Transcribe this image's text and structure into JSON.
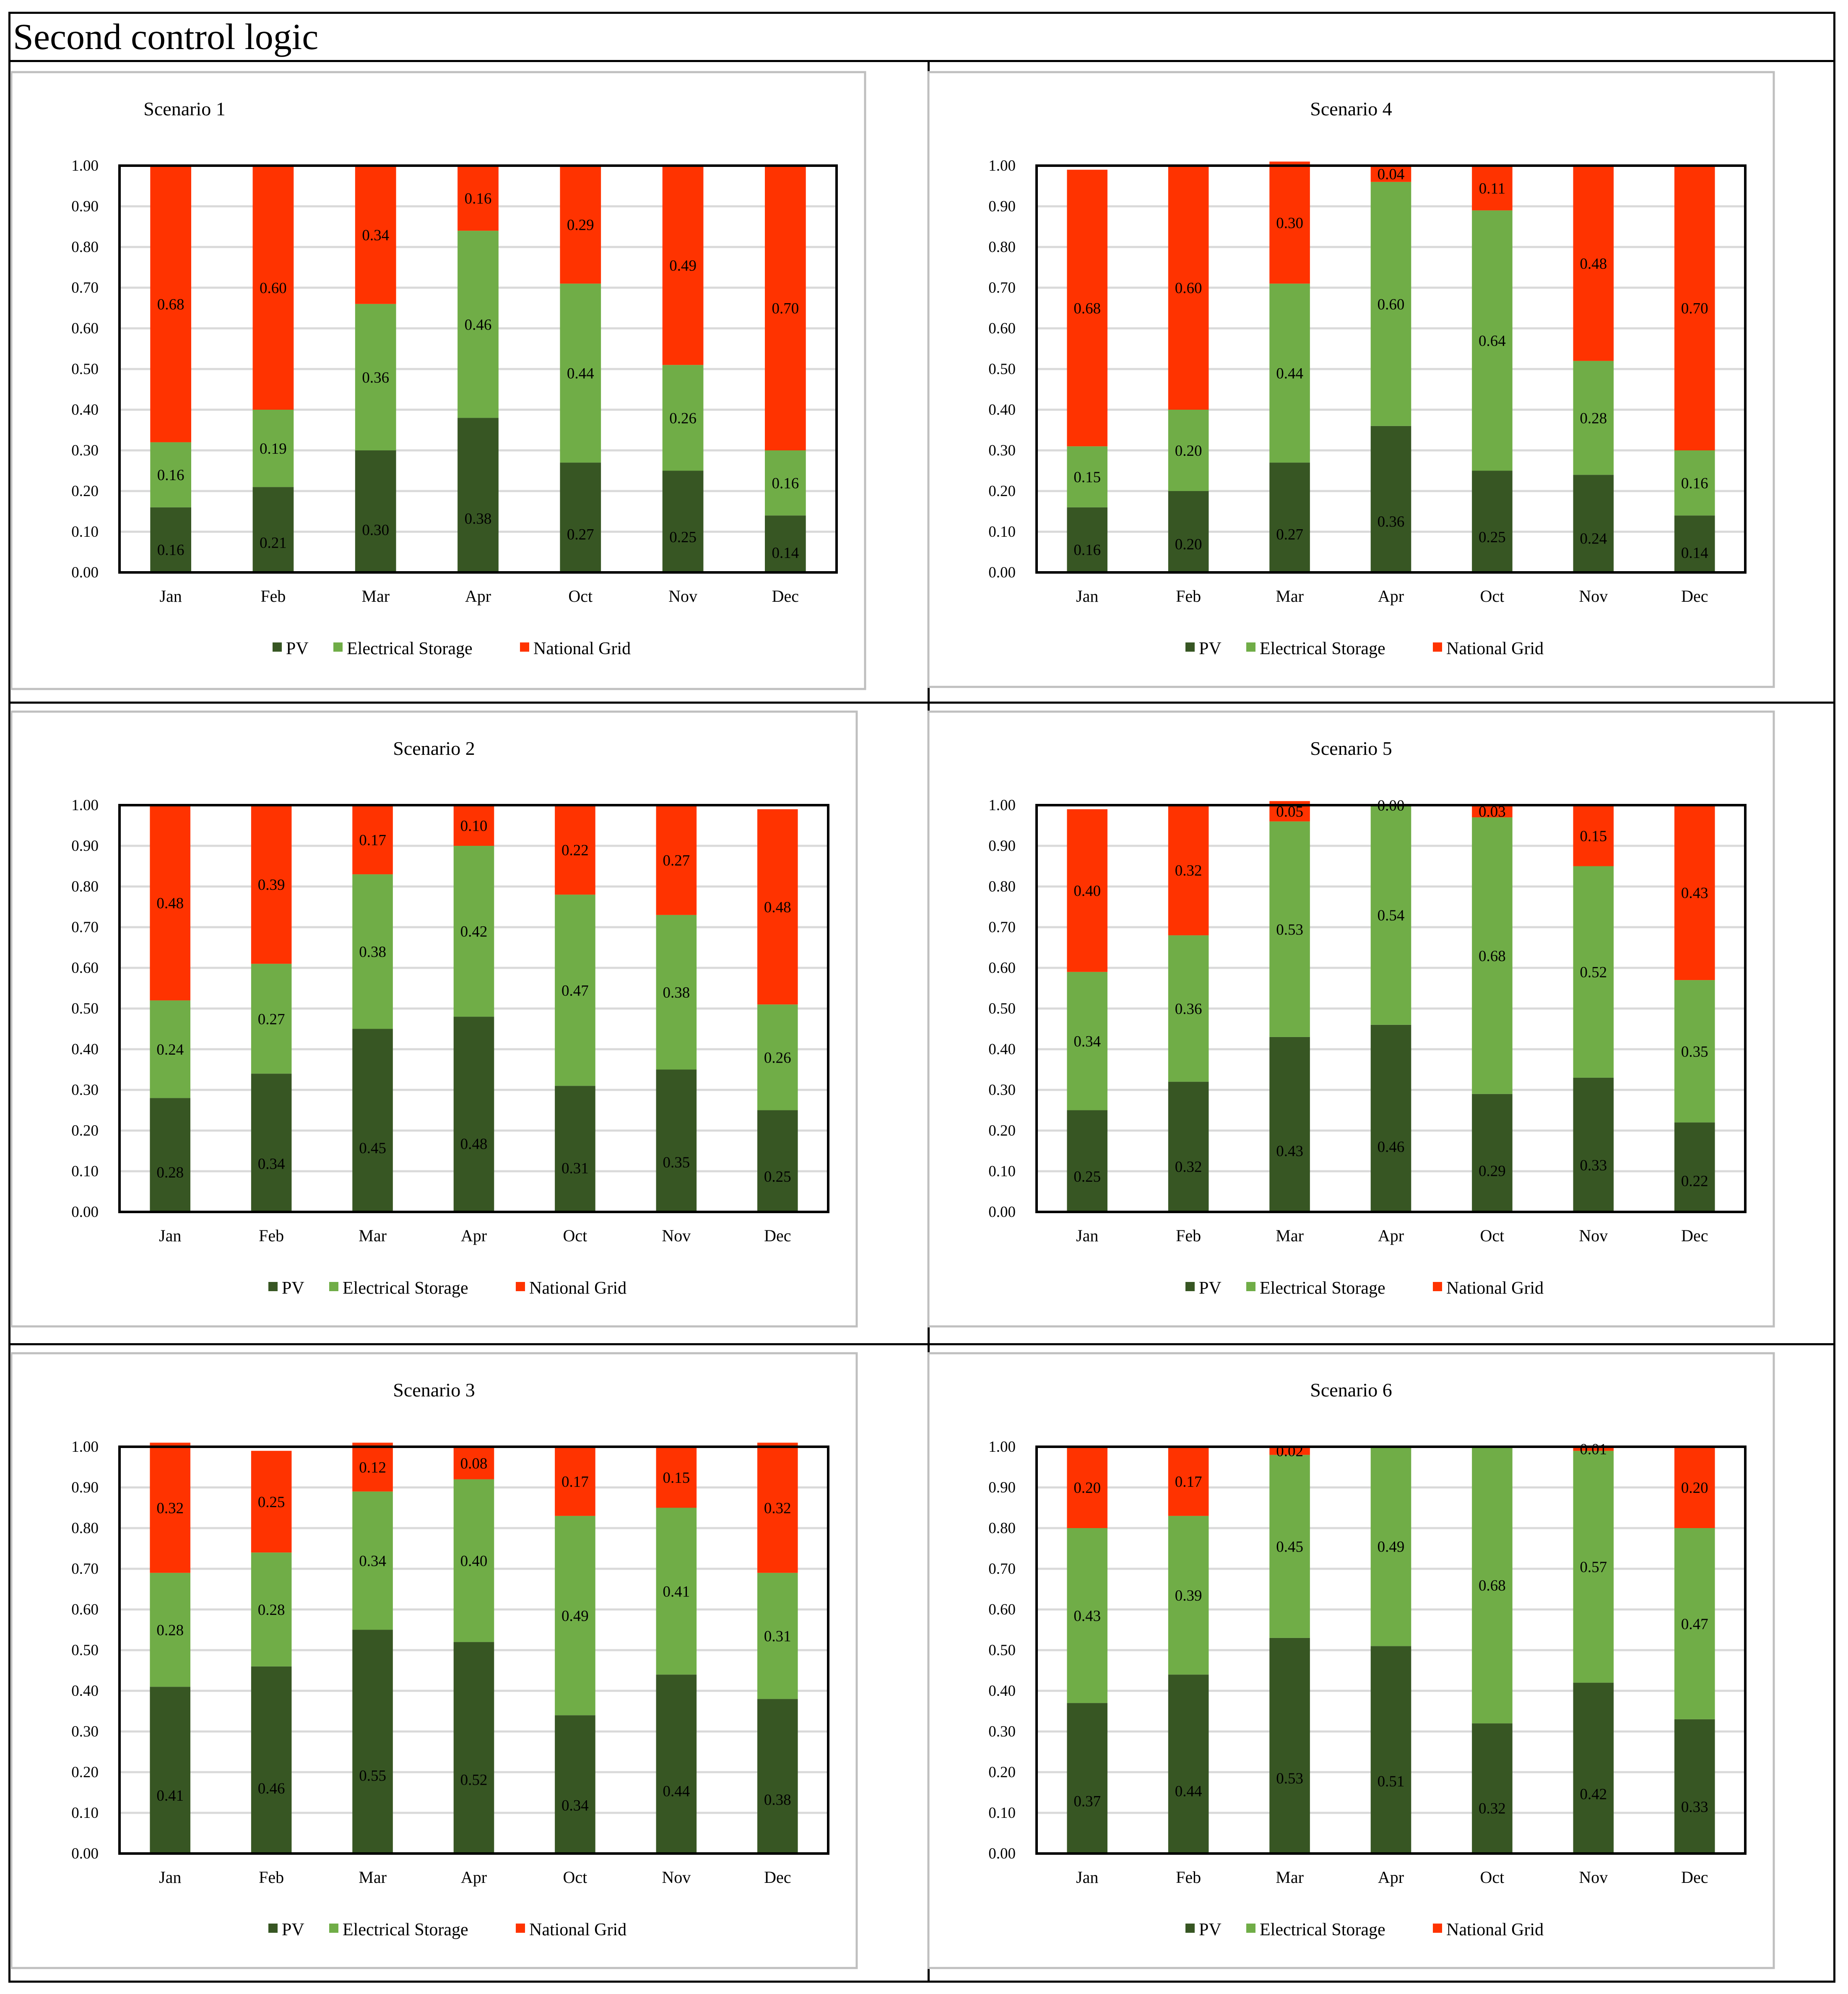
{
  "page_title": "Second control logic",
  "colors": {
    "pv": "#375623",
    "storage": "#70AD47",
    "grid": "#FF3300",
    "gridline": "#D9D9D9"
  },
  "legend": [
    "PV",
    "Electrical Storage",
    "National Grid"
  ],
  "chart_data": [
    {
      "type": "bar",
      "stacked": true,
      "title": "Scenario 1",
      "categories": [
        "Jan",
        "Feb",
        "Mar",
        "Apr",
        "Oct",
        "Nov",
        "Dec"
      ],
      "ylim": [
        0,
        1
      ],
      "yticks": [
        "0.00",
        "0.10",
        "0.20",
        "0.30",
        "0.40",
        "0.50",
        "0.60",
        "0.70",
        "0.80",
        "0.90",
        "1.00"
      ],
      "grid": true,
      "legend_position": "bottom",
      "series": [
        {
          "name": "PV",
          "values": [
            0.16,
            0.21,
            0.3,
            0.38,
            0.27,
            0.25,
            0.14
          ]
        },
        {
          "name": "Electrical Storage",
          "values": [
            0.16,
            0.19,
            0.36,
            0.46,
            0.44,
            0.26,
            0.16
          ]
        },
        {
          "name": "National Grid",
          "values": [
            0.68,
            0.6,
            0.34,
            0.16,
            0.29,
            0.49,
            0.7
          ]
        }
      ]
    },
    {
      "type": "bar",
      "stacked": true,
      "title": "Scenario 4",
      "categories": [
        "Jan",
        "Feb",
        "Mar",
        "Apr",
        "Oct",
        "Nov",
        "Dec"
      ],
      "ylim": [
        0,
        1
      ],
      "yticks": [
        "0.00",
        "0.10",
        "0.20",
        "0.30",
        "0.40",
        "0.50",
        "0.60",
        "0.70",
        "0.80",
        "0.90",
        "1.00"
      ],
      "grid": true,
      "legend_position": "bottom",
      "series": [
        {
          "name": "PV",
          "values": [
            0.16,
            0.2,
            0.27,
            0.36,
            0.25,
            0.24,
            0.14
          ]
        },
        {
          "name": "Electrical Storage",
          "values": [
            0.15,
            0.2,
            0.44,
            0.6,
            0.64,
            0.28,
            0.16
          ]
        },
        {
          "name": "National Grid",
          "values": [
            0.68,
            0.6,
            0.3,
            0.04,
            0.11,
            0.48,
            0.7
          ]
        }
      ]
    },
    {
      "type": "bar",
      "stacked": true,
      "title": "Scenario 2",
      "categories": [
        "Jan",
        "Feb",
        "Mar",
        "Apr",
        "Oct",
        "Nov",
        "Dec"
      ],
      "ylim": [
        0,
        1
      ],
      "yticks": [
        "0.00",
        "0.10",
        "0.20",
        "0.30",
        "0.40",
        "0.50",
        "0.60",
        "0.70",
        "0.80",
        "0.90",
        "1.00"
      ],
      "grid": true,
      "legend_position": "bottom",
      "series": [
        {
          "name": "PV",
          "values": [
            0.28,
            0.34,
            0.45,
            0.48,
            0.31,
            0.35,
            0.25
          ]
        },
        {
          "name": "Electrical Storage",
          "values": [
            0.24,
            0.27,
            0.38,
            0.42,
            0.47,
            0.38,
            0.26
          ]
        },
        {
          "name": "National Grid",
          "values": [
            0.48,
            0.39,
            0.17,
            0.1,
            0.22,
            0.27,
            0.48
          ]
        }
      ]
    },
    {
      "type": "bar",
      "stacked": true,
      "title": "Scenario 5",
      "categories": [
        "Jan",
        "Feb",
        "Mar",
        "Apr",
        "Oct",
        "Nov",
        "Dec"
      ],
      "ylim": [
        0,
        1
      ],
      "yticks": [
        "0.00",
        "0.10",
        "0.20",
        "0.30",
        "0.40",
        "0.50",
        "0.60",
        "0.70",
        "0.80",
        "0.90",
        "1.00"
      ],
      "grid": true,
      "legend_position": "bottom",
      "series": [
        {
          "name": "PV",
          "values": [
            0.25,
            0.32,
            0.43,
            0.46,
            0.29,
            0.33,
            0.22
          ]
        },
        {
          "name": "Electrical Storage",
          "values": [
            0.34,
            0.36,
            0.53,
            0.54,
            0.68,
            0.52,
            0.35
          ]
        },
        {
          "name": "National Grid",
          "values": [
            0.4,
            0.32,
            0.05,
            0.0,
            0.03,
            0.15,
            0.43
          ]
        }
      ]
    },
    {
      "type": "bar",
      "stacked": true,
      "title": "Scenario 3",
      "categories": [
        "Jan",
        "Feb",
        "Mar",
        "Apr",
        "Oct",
        "Nov",
        "Dec"
      ],
      "ylim": [
        0,
        1
      ],
      "yticks": [
        "0.00",
        "0.10",
        "0.20",
        "0.30",
        "0.40",
        "0.50",
        "0.60",
        "0.70",
        "0.80",
        "0.90",
        "1.00"
      ],
      "grid": true,
      "legend_position": "bottom",
      "series": [
        {
          "name": "PV",
          "values": [
            0.41,
            0.46,
            0.55,
            0.52,
            0.34,
            0.44,
            0.38
          ]
        },
        {
          "name": "Electrical Storage",
          "values": [
            0.28,
            0.28,
            0.34,
            0.4,
            0.49,
            0.41,
            0.31
          ]
        },
        {
          "name": "National Grid",
          "values": [
            0.32,
            0.25,
            0.12,
            0.08,
            0.17,
            0.15,
            0.32
          ]
        }
      ]
    },
    {
      "type": "bar",
      "stacked": true,
      "title": "Scenario 6",
      "categories": [
        "Jan",
        "Feb",
        "Mar",
        "Apr",
        "Oct",
        "Nov",
        "Dec"
      ],
      "ylim": [
        0,
        1
      ],
      "yticks": [
        "0.00",
        "0.10",
        "0.20",
        "0.30",
        "0.40",
        "0.50",
        "0.60",
        "0.70",
        "0.80",
        "0.90",
        "1.00"
      ],
      "grid": true,
      "legend_position": "bottom",
      "series": [
        {
          "name": "PV",
          "values": [
            0.37,
            0.44,
            0.53,
            0.51,
            0.32,
            0.42,
            0.33
          ]
        },
        {
          "name": "Electrical Storage",
          "values": [
            0.43,
            0.39,
            0.45,
            0.49,
            0.68,
            0.57,
            0.47
          ]
        },
        {
          "name": "National Grid",
          "values": [
            0.2,
            0.17,
            0.02,
            0.0,
            0.0,
            0.01,
            0.2
          ]
        }
      ],
      "bar_labels_shown": [
        [
          true,
          true,
          true,
          true,
          true,
          true,
          true
        ],
        [
          true,
          true,
          true,
          true,
          true,
          true,
          true
        ],
        [
          true,
          true,
          true,
          false,
          false,
          true,
          true
        ]
      ]
    }
  ]
}
